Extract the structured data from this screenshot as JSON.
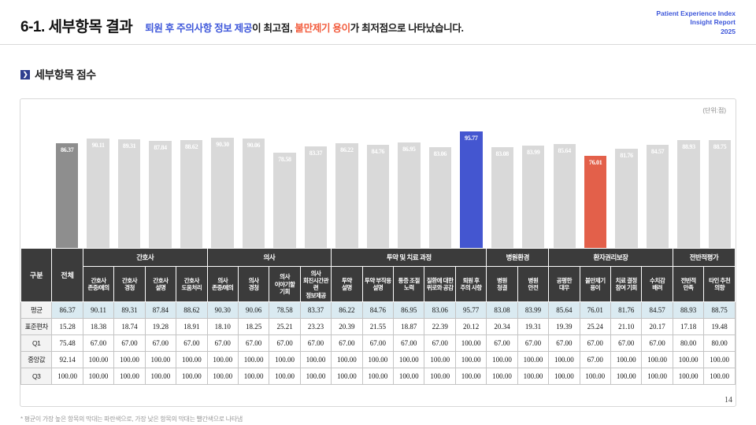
{
  "header": {
    "title": "6-1. 세부항목 결과",
    "subtitle": {
      "high": "퇴원 후 주의사항 정보 제공",
      "mid": "이 최고점, ",
      "low": "불만제기 용이",
      "tail": "가 최저점으로 나타났습니다."
    },
    "brand": [
      "Patient Experience Index",
      "Insight Report",
      "2025"
    ]
  },
  "section": {
    "title": "세부항목 점수"
  },
  "chart": {
    "unit": "(단위:점)"
  },
  "chart_data": {
    "type": "bar",
    "title": "세부항목 점수",
    "unit": "점",
    "ylim": [
      0,
      100
    ],
    "legend": "none",
    "grid": false,
    "categories": [
      "전체",
      "간호사 존중/예의",
      "간호사 경청",
      "간호사 설명",
      "간호사 도움처리",
      "의사 존중/예의",
      "의사 경청",
      "의사 이야기할 기회",
      "의사 회진시간관련 정보제공",
      "투약 설명",
      "투약 부작용 설명",
      "통증 조절 노력",
      "질환에 대한 위로와 공감",
      "퇴원 후 주의사항",
      "병원 청결",
      "병원 안전",
      "공평한 대우",
      "불만제기 용이",
      "치료 결정 참여 기회",
      "수치감 배려",
      "전반적 만족",
      "타인 추천 의향"
    ],
    "values": [
      86.37,
      90.11,
      89.31,
      87.84,
      88.62,
      90.3,
      90.06,
      78.58,
      83.37,
      86.22,
      84.76,
      86.95,
      83.06,
      95.77,
      83.08,
      83.99,
      85.64,
      76.01,
      81.76,
      84.57,
      88.93,
      88.75
    ],
    "types": [
      "total",
      "default",
      "default",
      "default",
      "default",
      "default",
      "default",
      "default",
      "default",
      "default",
      "default",
      "default",
      "default",
      "max",
      "default",
      "default",
      "default",
      "min",
      "default",
      "default",
      "default",
      "default"
    ],
    "colors": {
      "total": "#8e8e8e",
      "default": "#d9d9d9",
      "max": "#4456d0",
      "min": "#e3604a"
    }
  },
  "table": {
    "corner": "구분",
    "total": "전체",
    "groups": [
      {
        "label": "간호사",
        "span": 4
      },
      {
        "label": "의사",
        "span": 4
      },
      {
        "label": "투약 및 치료 과정",
        "span": 5
      },
      {
        "label": "병원환경",
        "span": 2
      },
      {
        "label": "환자권리보장",
        "span": 4
      },
      {
        "label": "전반적평가",
        "span": 2
      }
    ],
    "subheaders": [
      "간호사\n존중/예의",
      "간호사\n경청",
      "간호사\n설명",
      "간호사\n도움처리",
      "의사\n존중/예의",
      "의사\n경청",
      "의사\n이야기할\n기회",
      "의사\n회진시간관련\n정보제공",
      "투약\n설명",
      "투약 부작용\n설명",
      "통증 조절\n노력",
      "질환에 대한\n위로와 공감",
      "퇴원 후\n주의 사항",
      "병원\n청결",
      "병원\n안전",
      "공평한\n대우",
      "불만제기\n용이",
      "치료 결정\n참여 기회",
      "수치감\n배려",
      "전반적\n만족",
      "타인 추천\n의향"
    ],
    "rows": [
      {
        "label": "평균",
        "values": [
          "86.37",
          "90.11",
          "89.31",
          "87.84",
          "88.62",
          "90.30",
          "90.06",
          "78.58",
          "83.37",
          "86.22",
          "84.76",
          "86.95",
          "83.06",
          "95.77",
          "83.08",
          "83.99",
          "85.64",
          "76.01",
          "81.76",
          "84.57",
          "88.93",
          "88.75"
        ]
      },
      {
        "label": "표준편차",
        "values": [
          "15.28",
          "18.38",
          "18.74",
          "19.28",
          "18.91",
          "18.10",
          "18.25",
          "25.21",
          "23.23",
          "20.39",
          "21.55",
          "18.87",
          "22.39",
          "20.12",
          "20.34",
          "19.31",
          "19.39",
          "25.24",
          "21.10",
          "20.17",
          "17.18",
          "19.48"
        ]
      },
      {
        "label": "Q1",
        "values": [
          "75.48",
          "67.00",
          "67.00",
          "67.00",
          "67.00",
          "67.00",
          "67.00",
          "67.00",
          "67.00",
          "67.00",
          "67.00",
          "67.00",
          "67.00",
          "100.00",
          "67.00",
          "67.00",
          "67.00",
          "67.00",
          "67.00",
          "67.00",
          "80.00",
          "80.00"
        ]
      },
      {
        "label": "중앙값",
        "values": [
          "92.14",
          "100.00",
          "100.00",
          "100.00",
          "100.00",
          "100.00",
          "100.00",
          "100.00",
          "100.00",
          "100.00",
          "100.00",
          "100.00",
          "100.00",
          "100.00",
          "100.00",
          "100.00",
          "100.00",
          "67.00",
          "100.00",
          "100.00",
          "100.00",
          "100.00"
        ]
      },
      {
        "label": "Q3",
        "values": [
          "100.00",
          "100.00",
          "100.00",
          "100.00",
          "100.00",
          "100.00",
          "100.00",
          "100.00",
          "100.00",
          "100.00",
          "100.00",
          "100.00",
          "100.00",
          "100.00",
          "100.00",
          "100.00",
          "100.00",
          "100.00",
          "100.00",
          "100.00",
          "100.00",
          "100.00"
        ]
      }
    ]
  },
  "footnote": "* 평균이 가장 높은 항목의 막대는 파란색으로, 가장 낮은 항목의 막대는 빨간색으로 나타냄",
  "page_number": "14"
}
